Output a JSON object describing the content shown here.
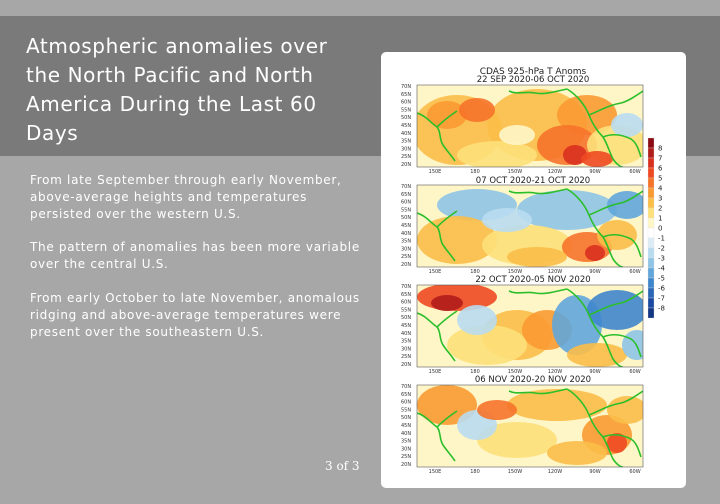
{
  "slide": {
    "title": "Atmospheric anomalies over the North Pacific and North America During the Last 60 Days",
    "paragraphs": [
      "From late September through early November, above-average heights and temperatures persisted over the western U.S.",
      "The pattern of anomalies has been more variable over the central U.S.",
      "From early October to late November, anomalous ridging and above-average temperatures were present over the southeastern U.S."
    ],
    "page_indicator": "3 of 3"
  },
  "figure": {
    "header": "CDAS 925-hPa T Anoms",
    "panels": [
      {
        "period": "22 SEP 2020-06 OCT 2020"
      },
      {
        "period": "07 OCT 2020-21 OCT 2020"
      },
      {
        "period": "22 OCT 2020-05 NOV 2020"
      },
      {
        "period": "06 NOV 2020-20 NOV 2020"
      }
    ],
    "lat_labels": [
      "70N",
      "65N",
      "60N",
      "55N",
      "50N",
      "45N",
      "40N",
      "35N",
      "30N",
      "25N",
      "20N"
    ],
    "lon_labels": [
      "150E",
      "180",
      "150W",
      "120W",
      "90W",
      "60W"
    ],
    "colorbar": {
      "levels": [
        "8",
        "7",
        "6",
        "5",
        "4",
        "3",
        "2",
        "1",
        "0",
        "-1",
        "-2",
        "-3",
        "-4",
        "-5",
        "-6",
        "-7",
        "-8"
      ],
      "colors": [
        "#8c0a14",
        "#b01d1a",
        "#d9301f",
        "#ee4a22",
        "#f6732a",
        "#f99a32",
        "#fbbe48",
        "#fde07a",
        "#fff6c8",
        "#ffffff",
        "#dcecf7",
        "#b9dbf0",
        "#8fc4e6",
        "#62a6da",
        "#3f86cc",
        "#2b66b7",
        "#1c4aa0",
        "#123682"
      ]
    }
  }
}
